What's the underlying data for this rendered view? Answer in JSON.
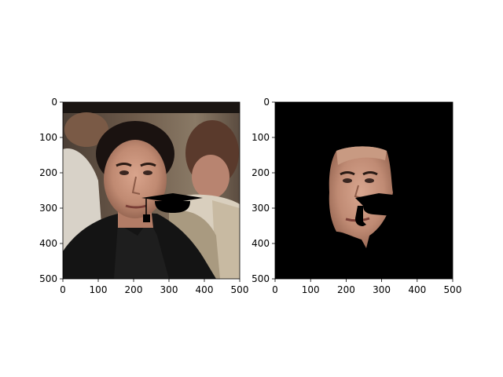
{
  "figure": {
    "panels": [
      {
        "name": "original-photo",
        "description_hidden": "",
        "x_ticks": [
          "0",
          "100",
          "200",
          "300",
          "400",
          "500"
        ],
        "y_ticks": [
          "0",
          "100",
          "200",
          "300",
          "400",
          "500"
        ],
        "xlim": [
          0,
          500
        ],
        "ylim": [
          500,
          0
        ]
      },
      {
        "name": "segmented-face",
        "x_ticks": [
          "0",
          "100",
          "200",
          "300",
          "400",
          "500"
        ],
        "y_ticks": [
          "0",
          "100",
          "200",
          "300",
          "400",
          "500"
        ],
        "xlim": [
          0,
          500
        ],
        "ylim": [
          500,
          0
        ]
      }
    ]
  }
}
